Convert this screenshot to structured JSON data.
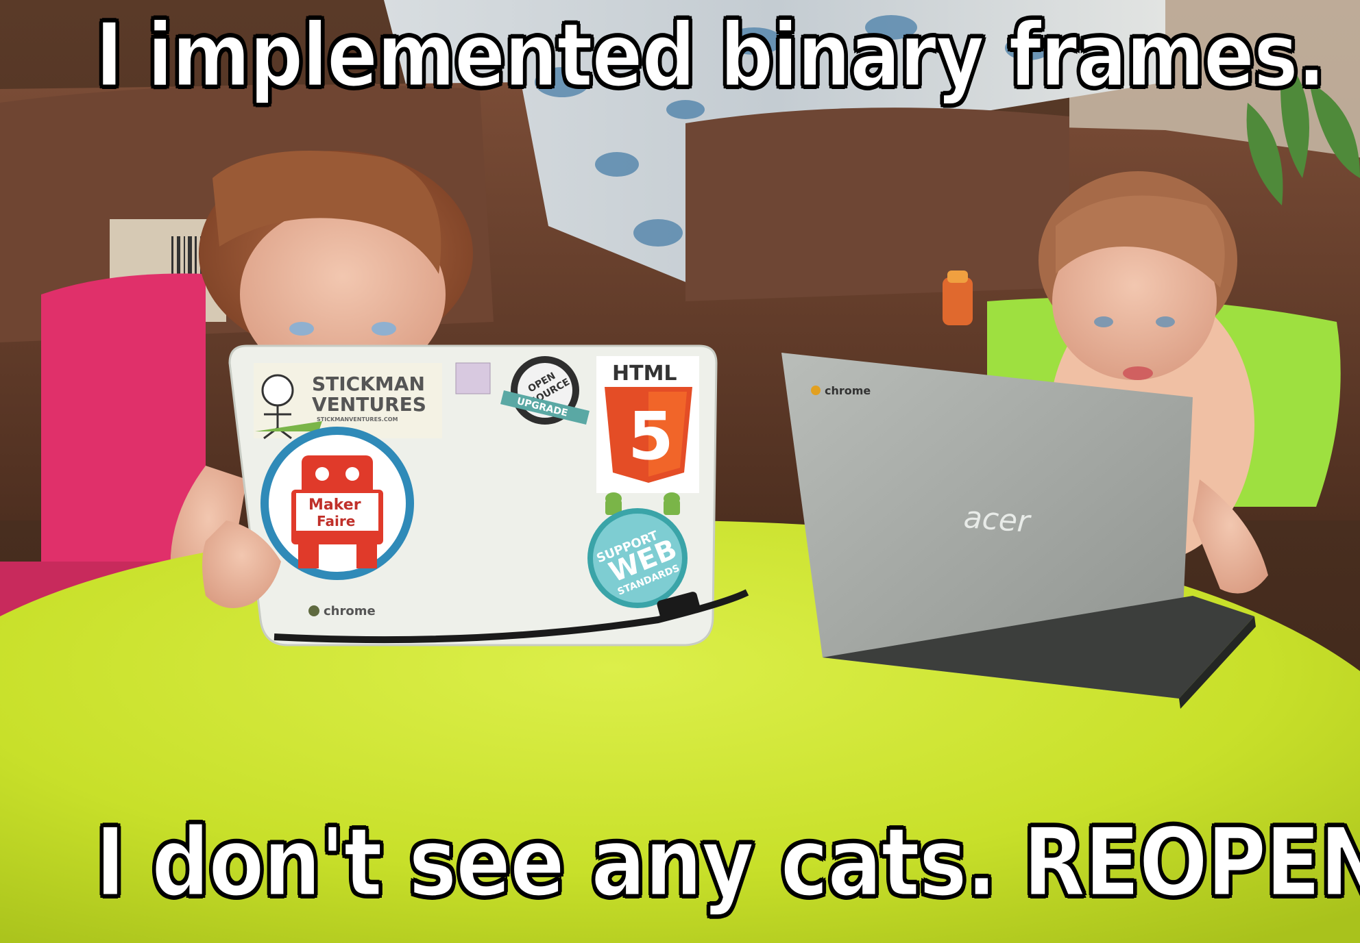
{
  "meme": {
    "top_text": "I implemented binary frames.",
    "bottom_text": "I don't see any cats. REOPEN."
  },
  "left_laptop": {
    "stickers": {
      "stickman_line1": "STICKMAN",
      "stickman_line2": "VENTURES",
      "stickman_url": "STICKMANVENTURES.COM",
      "open_source_line1": "OPEN",
      "open_source_line2": "SOURCE",
      "open_source_ribbon": "UPGRADE",
      "html_label": "HTML",
      "html_number": "5",
      "maker_faire_line1": "Maker",
      "maker_faire_line2": "Faire",
      "support_line": "SUPPORT",
      "web_line": "WEB",
      "standards_line": "STANDARDS"
    },
    "brand": "chrome"
  },
  "right_laptop": {
    "brand_top": "chrome",
    "brand_logo": "acer"
  },
  "colors": {
    "table_green": "#c8e02a",
    "left_chair_pink": "#e0306a",
    "right_chair_green": "#9ee040",
    "left_laptop_white": "#eef0ea",
    "right_laptop_gray": "#a6aaa6",
    "couch_brown": "#6b4330",
    "html5_orange": "#e44d26"
  }
}
